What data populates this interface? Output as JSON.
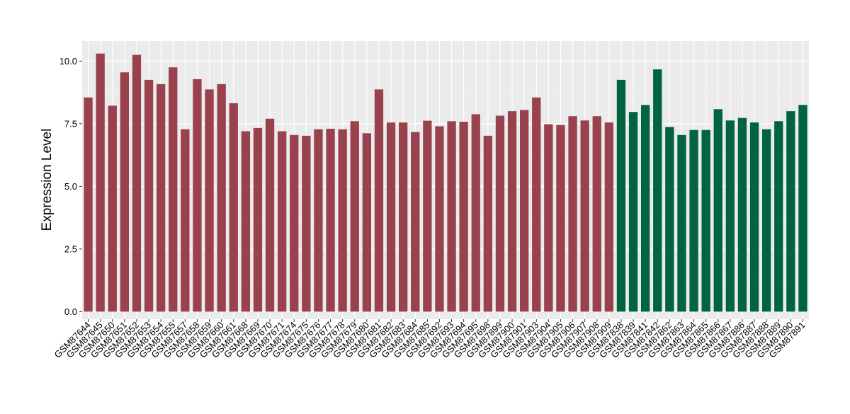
{
  "chart_data": {
    "type": "bar",
    "title": "",
    "xlabel": "",
    "ylabel": "Expression Level",
    "ylim": [
      -0.3,
      10.8
    ],
    "yticks": [
      "0.0",
      "2.5",
      "5.0",
      "7.5",
      "10.0"
    ],
    "ytick_values": [
      0,
      2.5,
      5,
      7.5,
      10
    ],
    "grid": true,
    "legend": "none",
    "colors": {
      "group_a": "#9A414E",
      "group_b": "#006441",
      "panel": "#EBEBEB",
      "grid_major": "#FFFFFF",
      "grid_minor": "#F4F4F4"
    },
    "categories": [
      "GSM87644",
      "GSM87645",
      "GSM87650",
      "GSM87651",
      "GSM87652",
      "GSM87653",
      "GSM87654",
      "GSM87655",
      "GSM87657",
      "GSM87658",
      "GSM87659",
      "GSM87660",
      "GSM87661",
      "GSM87668",
      "GSM87669",
      "GSM87670",
      "GSM87671",
      "GSM87674",
      "GSM87675",
      "GSM87676",
      "GSM87677",
      "GSM87678",
      "GSM87679",
      "GSM87680",
      "GSM87681",
      "GSM87682",
      "GSM87683",
      "GSM87684",
      "GSM87685",
      "GSM87692",
      "GSM87693",
      "GSM87694",
      "GSM87695",
      "GSM87698",
      "GSM87899",
      "GSM87900",
      "GSM87901",
      "GSM87903",
      "GSM87904",
      "GSM87905",
      "GSM87906",
      "GSM87907",
      "GSM87908",
      "GSM87909",
      "GSM87838",
      "GSM87839",
      "GSM87841",
      "GSM87842",
      "GSM87862",
      "GSM87863",
      "GSM87864",
      "GSM87865",
      "GSM87866",
      "GSM87867",
      "GSM87886",
      "GSM87887",
      "GSM87888",
      "GSM87889",
      "GSM87890",
      "GSM87891"
    ],
    "values": [
      8.55,
      10.3,
      8.22,
      9.55,
      10.25,
      9.25,
      9.08,
      9.75,
      7.28,
      9.28,
      8.87,
      9.08,
      8.32,
      7.2,
      7.33,
      7.7,
      7.2,
      7.05,
      7.02,
      7.28,
      7.3,
      7.28,
      7.6,
      7.12,
      8.87,
      7.55,
      7.55,
      7.17,
      7.62,
      7.4,
      7.6,
      7.58,
      7.88,
      7.02,
      7.82,
      8.0,
      8.05,
      8.55,
      7.48,
      7.45,
      7.8,
      7.63,
      7.8,
      7.55,
      9.25,
      7.97,
      8.25,
      9.67,
      7.37,
      7.05,
      7.25,
      7.25,
      8.08,
      7.63,
      7.73,
      7.55,
      7.28,
      7.6,
      8.0,
      8.25
    ],
    "groups": [
      "a",
      "a",
      "a",
      "a",
      "a",
      "a",
      "a",
      "a",
      "a",
      "a",
      "a",
      "a",
      "a",
      "a",
      "a",
      "a",
      "a",
      "a",
      "a",
      "a",
      "a",
      "a",
      "a",
      "a",
      "a",
      "a",
      "a",
      "a",
      "a",
      "a",
      "a",
      "a",
      "a",
      "a",
      "a",
      "a",
      "a",
      "a",
      "a",
      "a",
      "a",
      "a",
      "a",
      "a",
      "b",
      "b",
      "b",
      "b",
      "b",
      "b",
      "b",
      "b",
      "b",
      "b",
      "b",
      "b",
      "b",
      "b",
      "b",
      "b"
    ]
  }
}
